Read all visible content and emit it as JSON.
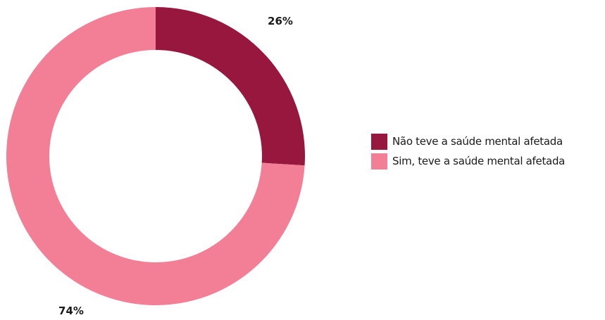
{
  "chart_data": {
    "type": "pie",
    "variant": "donut",
    "title": "",
    "legend_position": "right",
    "categories": [
      "Não teve a saúde mental afetada",
      "Sim, teve a saúde mental afetada"
    ],
    "values": [
      26,
      74
    ],
    "value_labels": [
      "26%",
      "74%"
    ],
    "colors": [
      "#97173f",
      "#f27f96"
    ]
  }
}
